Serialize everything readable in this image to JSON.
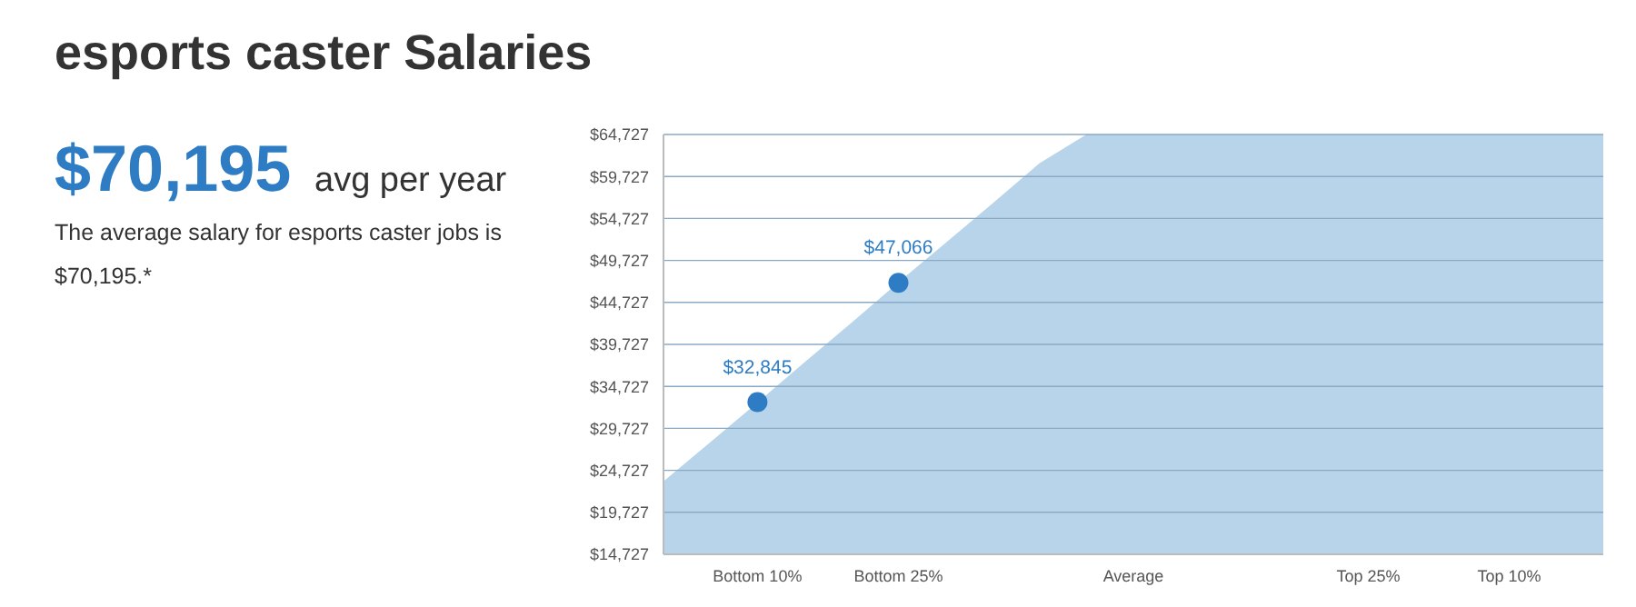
{
  "chart_data": {
    "type": "area",
    "title": "esports caster Salaries",
    "annotations": [
      "$70,195",
      "avg per year",
      "The average salary for esports caster jobs is $70,195.*"
    ],
    "categories": [
      null,
      null,
      "Bottom 10%",
      null,
      null,
      "Bottom 25%",
      null,
      null,
      null,
      null,
      "Average",
      null,
      null,
      null,
      null,
      "Top 25%",
      null,
      null,
      "Top 10%",
      null,
      null
    ],
    "ylim": [
      14727,
      64727
    ],
    "yticks": [
      {
        "value": 14727,
        "label": "$14,727"
      },
      {
        "value": 19727,
        "label": "$19,727"
      },
      {
        "value": 24727,
        "label": "$24,727"
      },
      {
        "value": 29727,
        "label": "$29,727"
      },
      {
        "value": 34727,
        "label": "$34,727"
      },
      {
        "value": 39727,
        "label": "$39,727"
      },
      {
        "value": 44727,
        "label": "$44,727"
      },
      {
        "value": 49727,
        "label": "$49,727"
      },
      {
        "value": 54727,
        "label": "$54,727"
      },
      {
        "value": 59727,
        "label": "$59,727"
      },
      {
        "value": 64727,
        "label": "$64,727"
      }
    ],
    "grid": "y",
    "series": [
      {
        "color": "#b7d4ea",
        "values": [
          23400,
          28100,
          32800,
          37600,
          42300,
          47100,
          51800,
          56500,
          61300,
          64727,
          64727,
          64727,
          64727,
          64727,
          64727,
          64727,
          64727,
          64727,
          64727,
          64727,
          64727
        ]
      },
      {
        "type": "scatter",
        "color": "#2e7dc4",
        "x": [
          "Bottom 10%",
          "Bottom 25%"
        ],
        "values": [
          32845,
          47066
        ],
        "value_labels": [
          "$32,845",
          "$47,066"
        ]
      }
    ]
  }
}
